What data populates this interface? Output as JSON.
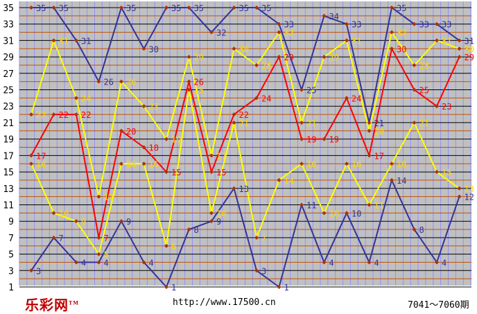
{
  "chart_data": {
    "type": "line",
    "title": "",
    "xlabel": "",
    "ylabel": "",
    "ylim": [
      1,
      35
    ],
    "y_ticks": [
      1,
      3,
      5,
      7,
      9,
      11,
      13,
      15,
      17,
      19,
      21,
      23,
      25,
      27,
      29,
      31,
      33,
      35
    ],
    "x_count": 20,
    "grid": true,
    "series": [
      {
        "color": "#333399",
        "values": [
          3,
          7,
          4,
          4,
          9,
          4,
          1,
          8,
          9,
          13,
          3,
          1,
          11,
          4,
          10,
          4,
          14,
          8,
          4,
          12
        ]
      },
      {
        "color": "#ffff00",
        "values": [
          16,
          10,
          9,
          5,
          16,
          16,
          6,
          25,
          10,
          21,
          7,
          14,
          16,
          10,
          16,
          11,
          16,
          21,
          15,
          13
        ]
      },
      {
        "color": "#ff0000",
        "values": [
          17,
          22,
          22,
          7,
          20,
          18,
          15,
          26,
          15,
          22,
          24,
          29,
          19,
          19,
          24,
          17,
          30,
          25,
          23,
          29
        ]
      },
      {
        "color": "#ffff00",
        "values": [
          22,
          31,
          24,
          12,
          26,
          23,
          19,
          29,
          17,
          30,
          28,
          32,
          21,
          29,
          31,
          20,
          32,
          28,
          31,
          30
        ]
      },
      {
        "color": "#333399",
        "values": [
          35,
          35,
          31,
          26,
          35,
          30,
          35,
          35,
          32,
          35,
          35,
          33,
          25,
          34,
          33,
          21,
          35,
          33,
          33,
          31
        ]
      }
    ]
  },
  "footer": {
    "logo": "乐彩网",
    "logo_tm": "TM",
    "url": "http://www.17500.cn",
    "period": "7041～7060期"
  },
  "colors": {
    "plot_bg": "#c0c0c0",
    "grid_even": "#c05000",
    "grid_odd": "#000000",
    "vgrid": "#9090ff",
    "marker": "#b03000",
    "label_yellow": "#ffd700",
    "label_red": "#ff0000",
    "label_navy": "#333399"
  }
}
